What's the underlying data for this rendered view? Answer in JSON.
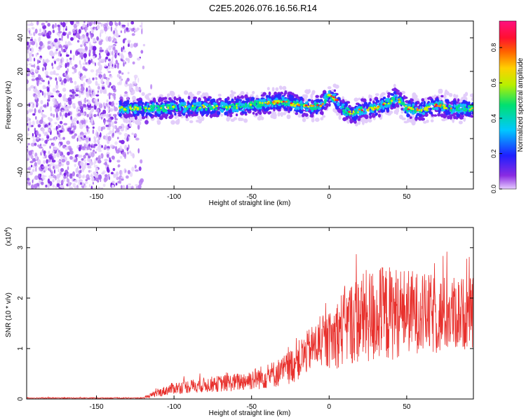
{
  "figure": {
    "title": "C2E5.2026.076.16.56.R14"
  },
  "colors": {
    "snr_line": "#e8302c",
    "axis": "#000000",
    "background": "#ffffff"
  },
  "chart_data": [
    {
      "type": "heatmap",
      "panel": "top",
      "xlabel": "Height of straight line (km)",
      "ylabel": "Frequency (Hz)",
      "xlim": [
        -195,
        93
      ],
      "ylim": [
        -50,
        50
      ],
      "xticks": [
        -150,
        -100,
        -50,
        0,
        50
      ],
      "yticks": [
        -40,
        -20,
        0,
        20,
        40
      ],
      "colorbar": {
        "label": "Normalized spectral amplitude",
        "range": [
          0,
          0.95
        ],
        "ticks": [
          0.0,
          0.2,
          0.4,
          0.6,
          0.8
        ],
        "colormap": "rainbow (purple-blue-cyan-green-yellow-orange-red-magenta)"
      },
      "noise_region_x": [
        -195,
        -120
      ],
      "signal_start_x": -135,
      "signal_ridge": {
        "x": [
          -135,
          -110,
          -80,
          -60,
          -40,
          -30,
          -20,
          -10,
          -5,
          0,
          5,
          10,
          15,
          20,
          30,
          40,
          43,
          50,
          60,
          70,
          80,
          93
        ],
        "freq": [
          -2,
          -2,
          -1,
          -1,
          1,
          2,
          0,
          -1,
          0,
          6,
          3,
          -3,
          -5,
          -3,
          -2,
          2,
          5,
          -2,
          -3,
          0,
          -2,
          -2
        ]
      }
    },
    {
      "type": "line",
      "panel": "bottom",
      "xlabel": "Height of straight line (km)",
      "ylabel": "SNR (10 * v/v)",
      "scale_note": "(x10",
      "scale_exp": "4",
      "scale_close": ")",
      "xlim": [
        -195,
        93
      ],
      "ylim": [
        0,
        3.4
      ],
      "xticks": [
        -150,
        -100,
        -50,
        0,
        50
      ],
      "yticks": [
        0,
        1,
        2,
        3
      ],
      "envelope": {
        "x": [
          -195,
          -120,
          -110,
          -100,
          -80,
          -60,
          -40,
          -30,
          -20,
          -10,
          0,
          5,
          10,
          20,
          30,
          40,
          50,
          60,
          70,
          80,
          93
        ],
        "mean": [
          0.02,
          0.02,
          0.12,
          0.22,
          0.28,
          0.33,
          0.45,
          0.55,
          0.75,
          1.05,
          1.15,
          1.3,
          1.45,
          1.6,
          1.65,
          1.7,
          1.75,
          1.7,
          1.65,
          1.7,
          1.7
        ],
        "noise": [
          0.01,
          0.01,
          0.08,
          0.12,
          0.15,
          0.18,
          0.25,
          0.3,
          0.4,
          0.45,
          0.55,
          0.7,
          0.8,
          0.9,
          1.0,
          0.95,
          0.85,
          0.8,
          0.8,
          0.75,
          0.7
        ]
      }
    }
  ]
}
